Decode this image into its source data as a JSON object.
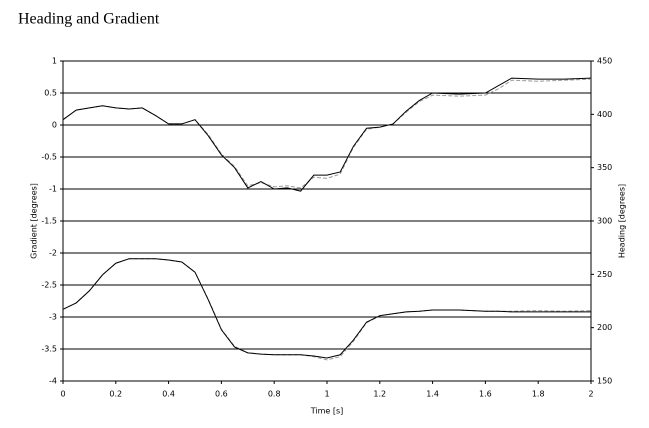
{
  "chart_data": {
    "type": "line",
    "title": "Heading and Gradient",
    "xlabel": "Time [s]",
    "ylabel": "Gradient [degrees]",
    "y2label": "Heading [degrees]",
    "x": [
      0,
      0.05,
      0.1,
      0.15,
      0.2,
      0.25,
      0.3,
      0.35,
      0.4,
      0.45,
      0.5,
      0.55,
      0.6,
      0.65,
      0.7,
      0.75,
      0.8,
      0.85,
      0.9,
      0.95,
      1.0,
      1.05,
      1.1,
      1.15,
      1.2,
      1.25,
      1.3,
      1.35,
      1.4,
      1.5,
      1.6,
      1.65,
      1.7,
      1.8,
      1.9,
      2.0
    ],
    "series": [
      {
        "color": "#999999",
        "dashed": true,
        "axis": "y2",
        "values": [
          395,
          404,
          406,
          408,
          406,
          405,
          406,
          399,
          391,
          391,
          395,
          381,
          363,
          351,
          333,
          336,
          332,
          333,
          331,
          341,
          340,
          344,
          369,
          386,
          388,
          391,
          402,
          412,
          418,
          417,
          418,
          424,
          432,
          431,
          432,
          433
        ]
      },
      {
        "color": "#000000",
        "dashed": false,
        "axis": "y2",
        "values": [
          395,
          404,
          406,
          408,
          406,
          405,
          406,
          399,
          391,
          391,
          395,
          380,
          362,
          350,
          331,
          337,
          330,
          331,
          328,
          343,
          343,
          346,
          370,
          387,
          388,
          391,
          403,
          413,
          420,
          419,
          420,
          427,
          434,
          433,
          433,
          434
        ]
      },
      {
        "color": "#999999",
        "dashed": true,
        "values": [
          -2.88,
          -2.78,
          -2.59,
          -2.34,
          -2.16,
          -2.09,
          -2.09,
          -2.09,
          -2.11,
          -2.14,
          -2.3,
          -2.72,
          -3.19,
          -3.46,
          -3.56,
          -3.58,
          -3.59,
          -3.59,
          -3.59,
          -3.62,
          -3.67,
          -3.62,
          -3.38,
          -3.09,
          -2.98,
          -2.95,
          -2.92,
          -2.91,
          -2.89,
          -2.89,
          -2.91,
          -2.91,
          -2.91,
          -2.9,
          -2.91,
          -2.9
        ]
      },
      {
        "color": "#000000",
        "dashed": false,
        "values": [
          -2.88,
          -2.78,
          -2.59,
          -2.34,
          -2.16,
          -2.09,
          -2.09,
          -2.09,
          -2.11,
          -2.14,
          -2.3,
          -2.73,
          -3.2,
          -3.47,
          -3.56,
          -3.58,
          -3.59,
          -3.59,
          -3.59,
          -3.61,
          -3.64,
          -3.59,
          -3.36,
          -3.08,
          -2.98,
          -2.95,
          -2.92,
          -2.91,
          -2.89,
          -2.89,
          -2.91,
          -2.91,
          -2.92,
          -2.92,
          -2.92,
          -2.92
        ]
      }
    ],
    "xlim": [
      0,
      2
    ],
    "xticks": [
      0,
      0.2,
      0.4,
      0.6,
      0.8,
      1,
      1.2,
      1.4,
      1.6,
      1.8,
      2
    ],
    "ylim": [
      -4,
      1
    ],
    "yticks": [
      -4,
      -3.5,
      -3,
      -2.5,
      -2,
      -1.5,
      -1,
      -0.5,
      0,
      0.5,
      1
    ],
    "y2lim": [
      150,
      450
    ],
    "y2ticks": [
      150,
      200,
      250,
      300,
      350,
      400,
      450
    ],
    "grid": true
  }
}
